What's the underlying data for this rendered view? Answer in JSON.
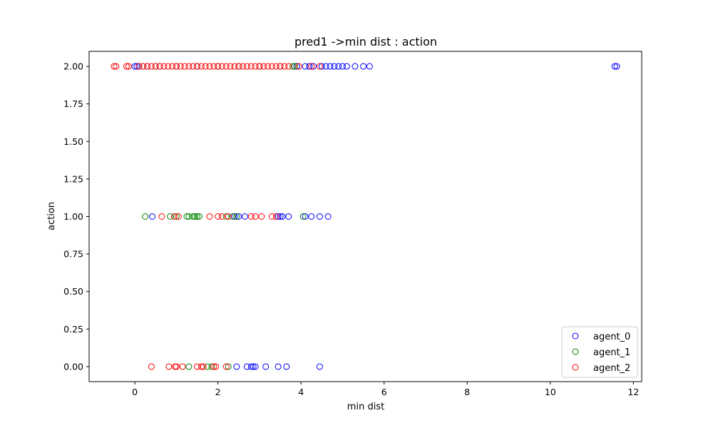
{
  "chart_data": {
    "type": "scatter",
    "title": "pred1 ->min dist : action",
    "xlabel": "min dist",
    "ylabel": "action",
    "xlim": [
      -1.1,
      12.2
    ],
    "ylim": [
      -0.1,
      2.1
    ],
    "xticks": [
      0,
      2,
      4,
      6,
      8,
      10,
      12
    ],
    "yticks": [
      0.0,
      0.25,
      0.5,
      0.75,
      1.0,
      1.25,
      1.5,
      1.75,
      2.0
    ],
    "xtick_labels": [
      "0",
      "2",
      "4",
      "6",
      "8",
      "10",
      "12"
    ],
    "ytick_labels": [
      "0.00",
      "0.25",
      "0.50",
      "0.75",
      "1.00",
      "1.25",
      "1.50",
      "1.75",
      "2.00"
    ],
    "grid": false,
    "marker": "open-circle",
    "legend_position": "bottom-right",
    "series": [
      {
        "name": "agent_0",
        "color": "#0000ff",
        "points": [
          [
            0.0,
            2
          ],
          [
            0.05,
            2
          ],
          [
            0.1,
            2
          ],
          [
            0.3,
            2
          ],
          [
            0.6,
            2
          ],
          [
            1.0,
            2
          ],
          [
            1.5,
            2
          ],
          [
            2.0,
            2
          ],
          [
            2.5,
            2
          ],
          [
            3.0,
            2
          ],
          [
            3.5,
            2
          ],
          [
            3.9,
            2
          ],
          [
            4.1,
            2
          ],
          [
            4.2,
            2
          ],
          [
            4.3,
            2
          ],
          [
            4.5,
            2
          ],
          [
            4.6,
            2
          ],
          [
            4.7,
            2
          ],
          [
            4.8,
            2
          ],
          [
            4.9,
            2
          ],
          [
            5.0,
            2
          ],
          [
            5.1,
            2
          ],
          [
            5.3,
            2
          ],
          [
            5.5,
            2
          ],
          [
            5.65,
            2
          ],
          [
            11.55,
            2
          ],
          [
            11.6,
            2
          ],
          [
            0.42,
            1
          ],
          [
            2.4,
            1
          ],
          [
            2.5,
            1
          ],
          [
            2.65,
            1
          ],
          [
            3.45,
            1
          ],
          [
            3.5,
            1
          ],
          [
            3.55,
            1
          ],
          [
            3.7,
            1
          ],
          [
            4.1,
            1
          ],
          [
            4.25,
            1
          ],
          [
            4.45,
            1
          ],
          [
            4.65,
            1
          ],
          [
            2.45,
            0
          ],
          [
            2.7,
            0
          ],
          [
            2.8,
            0
          ],
          [
            2.85,
            0
          ],
          [
            2.9,
            0
          ],
          [
            3.15,
            0
          ],
          [
            3.45,
            0
          ],
          [
            3.65,
            0
          ],
          [
            4.45,
            0
          ]
        ]
      },
      {
        "name": "agent_1",
        "color": "#008000",
        "points": [
          [
            0.2,
            2
          ],
          [
            0.5,
            2
          ],
          [
            1.0,
            2
          ],
          [
            1.5,
            2
          ],
          [
            2.0,
            2
          ],
          [
            2.5,
            2
          ],
          [
            3.0,
            2
          ],
          [
            3.5,
            2
          ],
          [
            3.8,
            2
          ],
          [
            3.85,
            2
          ],
          [
            0.25,
            1
          ],
          [
            0.85,
            1
          ],
          [
            1.0,
            1
          ],
          [
            1.25,
            1
          ],
          [
            1.3,
            1
          ],
          [
            1.4,
            1
          ],
          [
            1.45,
            1
          ],
          [
            1.5,
            1
          ],
          [
            1.55,
            1
          ],
          [
            2.2,
            1
          ],
          [
            2.35,
            1
          ],
          [
            2.45,
            1
          ],
          [
            4.05,
            1
          ],
          [
            1.3,
            0
          ],
          [
            1.75,
            0
          ],
          [
            1.85,
            0
          ],
          [
            2.25,
            0
          ]
        ]
      },
      {
        "name": "agent_2",
        "color": "#ff0000",
        "points": [
          [
            -0.5,
            2
          ],
          [
            -0.45,
            2
          ],
          [
            -0.2,
            2
          ],
          [
            -0.15,
            2
          ],
          [
            0.1,
            2
          ],
          [
            0.2,
            2
          ],
          [
            0.3,
            2
          ],
          [
            0.4,
            2
          ],
          [
            0.5,
            2
          ],
          [
            0.6,
            2
          ],
          [
            0.7,
            2
          ],
          [
            0.8,
            2
          ],
          [
            0.9,
            2
          ],
          [
            1.0,
            2
          ],
          [
            1.1,
            2
          ],
          [
            1.2,
            2
          ],
          [
            1.3,
            2
          ],
          [
            1.4,
            2
          ],
          [
            1.5,
            2
          ],
          [
            1.6,
            2
          ],
          [
            1.7,
            2
          ],
          [
            1.8,
            2
          ],
          [
            1.9,
            2
          ],
          [
            2.0,
            2
          ],
          [
            2.1,
            2
          ],
          [
            2.2,
            2
          ],
          [
            2.3,
            2
          ],
          [
            2.4,
            2
          ],
          [
            2.5,
            2
          ],
          [
            2.6,
            2
          ],
          [
            2.7,
            2
          ],
          [
            2.8,
            2
          ],
          [
            2.9,
            2
          ],
          [
            3.0,
            2
          ],
          [
            3.1,
            2
          ],
          [
            3.2,
            2
          ],
          [
            3.3,
            2
          ],
          [
            3.4,
            2
          ],
          [
            3.5,
            2
          ],
          [
            3.6,
            2
          ],
          [
            3.7,
            2
          ],
          [
            3.95,
            2
          ],
          [
            4.25,
            2
          ],
          [
            4.45,
            2
          ],
          [
            0.65,
            1
          ],
          [
            0.95,
            1
          ],
          [
            1.05,
            1
          ],
          [
            1.8,
            1
          ],
          [
            2.0,
            1
          ],
          [
            2.1,
            1
          ],
          [
            2.25,
            1
          ],
          [
            2.8,
            1
          ],
          [
            2.9,
            1
          ],
          [
            3.05,
            1
          ],
          [
            3.3,
            1
          ],
          [
            3.4,
            1
          ],
          [
            0.4,
            0
          ],
          [
            0.82,
            0
          ],
          [
            0.97,
            0
          ],
          [
            1.0,
            0
          ],
          [
            1.15,
            0
          ],
          [
            1.5,
            0
          ],
          [
            1.6,
            0
          ],
          [
            1.65,
            0
          ],
          [
            1.9,
            0
          ],
          [
            1.95,
            0
          ],
          [
            2.2,
            0
          ]
        ]
      }
    ]
  }
}
